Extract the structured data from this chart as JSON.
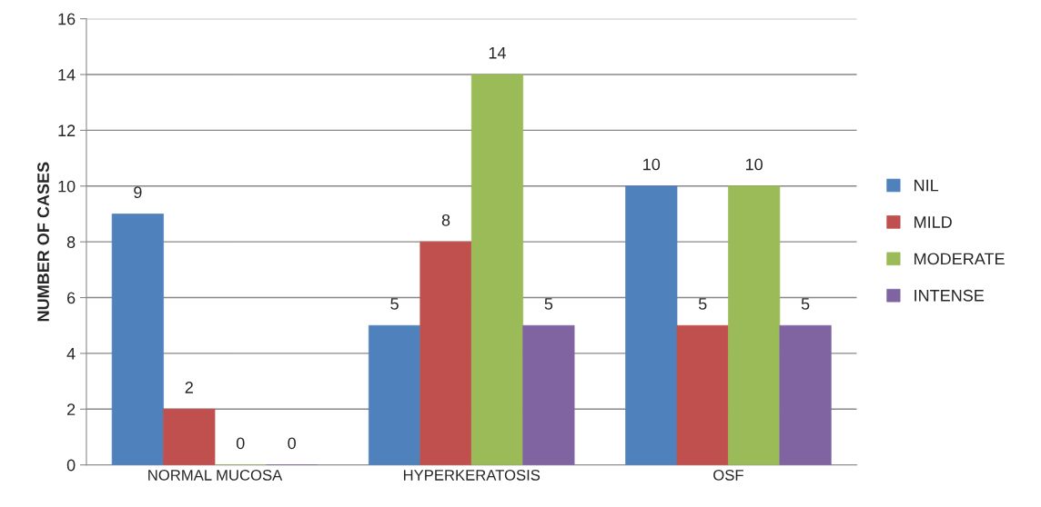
{
  "chart_data": {
    "type": "bar",
    "ylabel": "NUMBER OF CASES",
    "categories": [
      "NORMAL MUCOSA",
      "HYPERKERATOSIS",
      "OSF"
    ],
    "series": [
      {
        "name": "NIL",
        "color": "#4f81bd",
        "values": [
          9,
          5,
          10
        ]
      },
      {
        "name": "MILD",
        "color": "#c0504d",
        "values": [
          2,
          8,
          5
        ]
      },
      {
        "name": "MODERATE",
        "color": "#9bbb59",
        "values": [
          0,
          14,
          10
        ]
      },
      {
        "name": "INTENSE",
        "color": "#8064a2",
        "values": [
          0,
          5,
          5
        ]
      }
    ],
    "ylim": [
      0,
      16
    ],
    "yticks": [
      0,
      2,
      4,
      6,
      8,
      10,
      12,
      14,
      16
    ],
    "grid": "y",
    "legend": "right",
    "data_labels": true
  }
}
